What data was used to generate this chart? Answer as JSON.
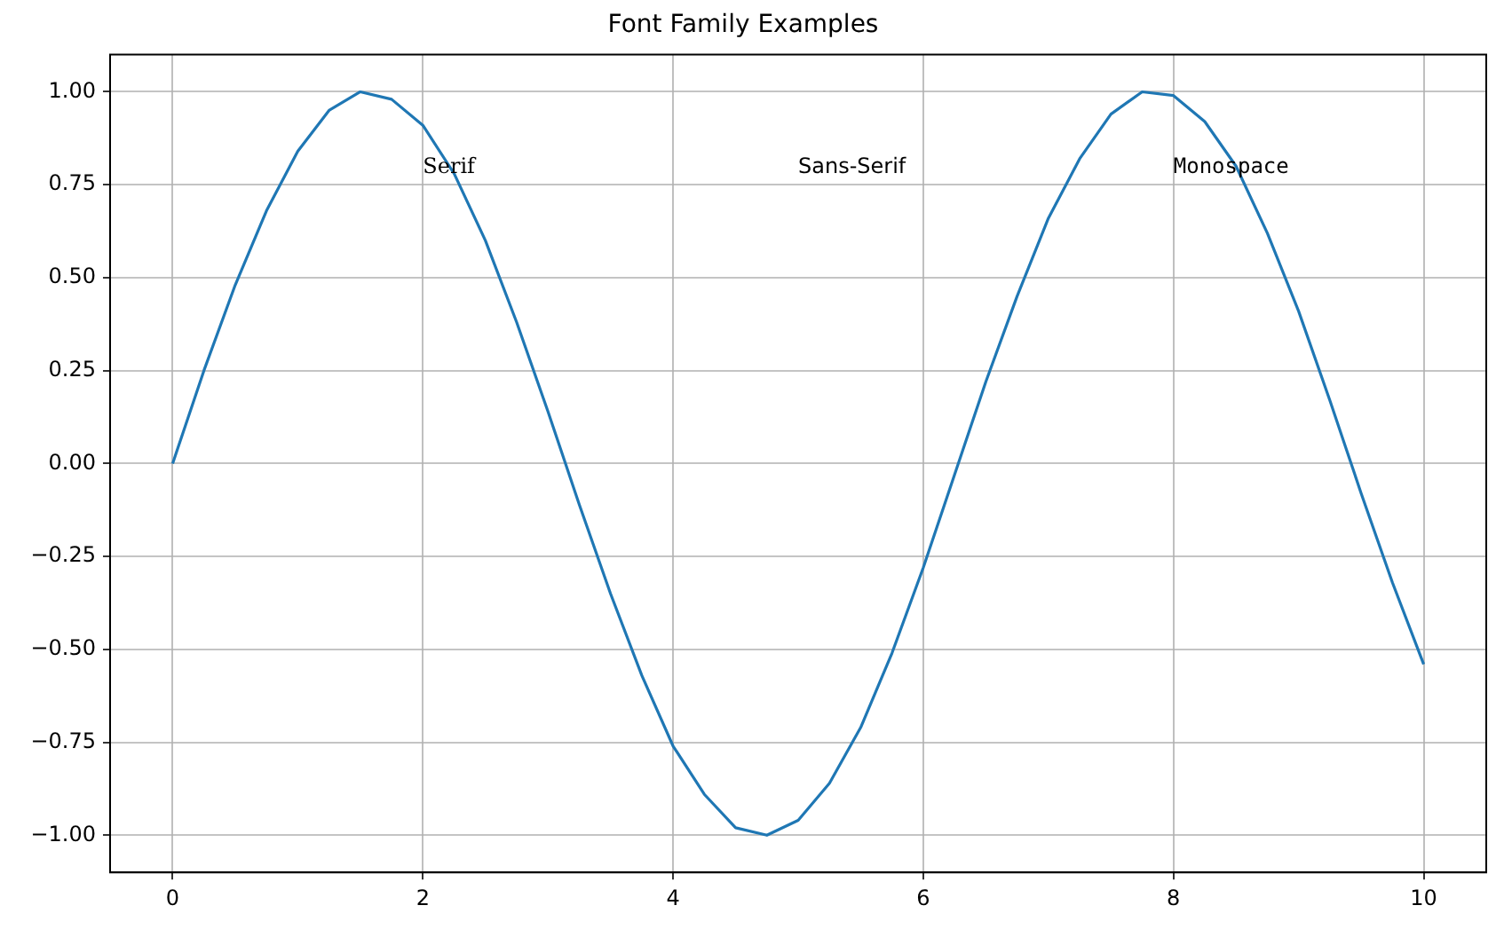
{
  "chart_data": {
    "type": "line",
    "title": "Font Family Examples",
    "x": [
      0,
      0.25,
      0.5,
      0.75,
      1,
      1.25,
      1.5,
      1.75,
      2,
      2.25,
      2.5,
      2.75,
      3,
      3.25,
      3.5,
      3.75,
      4,
      4.25,
      4.5,
      4.75,
      5,
      5.25,
      5.5,
      5.75,
      6,
      6.25,
      6.5,
      6.75,
      7,
      7.25,
      7.5,
      7.75,
      8,
      8.25,
      8.5,
      8.75,
      9,
      9.25,
      9.5,
      9.75,
      10
    ],
    "series": [
      {
        "color": "#1f77b4",
        "values": [
          0,
          0.25,
          0.48,
          0.68,
          0.84,
          0.95,
          1.0,
          0.98,
          0.91,
          0.78,
          0.6,
          0.38,
          0.14,
          -0.11,
          -0.35,
          -0.57,
          -0.76,
          -0.89,
          -0.98,
          -1.0,
          -0.96,
          -0.86,
          -0.71,
          -0.51,
          -0.28,
          -0.03,
          0.22,
          0.45,
          0.66,
          0.82,
          0.94,
          1.0,
          0.99,
          0.92,
          0.8,
          0.62,
          0.41,
          0.17,
          -0.08,
          -0.32,
          -0.54
        ]
      }
    ],
    "xlim": [
      -0.5,
      10.5
    ],
    "xticks": [
      0,
      2,
      4,
      6,
      8,
      10
    ],
    "ylim": [
      -1.1,
      1.1
    ],
    "yticks": [
      {
        "value": -1,
        "label": "−1.00"
      },
      {
        "value": -0.75,
        "label": "−0.75"
      },
      {
        "value": -0.5,
        "label": "−0.50"
      },
      {
        "value": -0.25,
        "label": "−0.25"
      },
      {
        "value": 0,
        "label": "0.00"
      },
      {
        "value": 0.25,
        "label": "0.25"
      },
      {
        "value": 0.5,
        "label": "0.50"
      },
      {
        "value": 0.75,
        "label": "0.75"
      },
      {
        "value": 1,
        "label": "1.00"
      }
    ],
    "grid": true,
    "legend": false,
    "marker": "none",
    "line_style": "solid",
    "annotations": [
      "Serif",
      "Sans-Serif",
      "Monospace"
    ]
  }
}
